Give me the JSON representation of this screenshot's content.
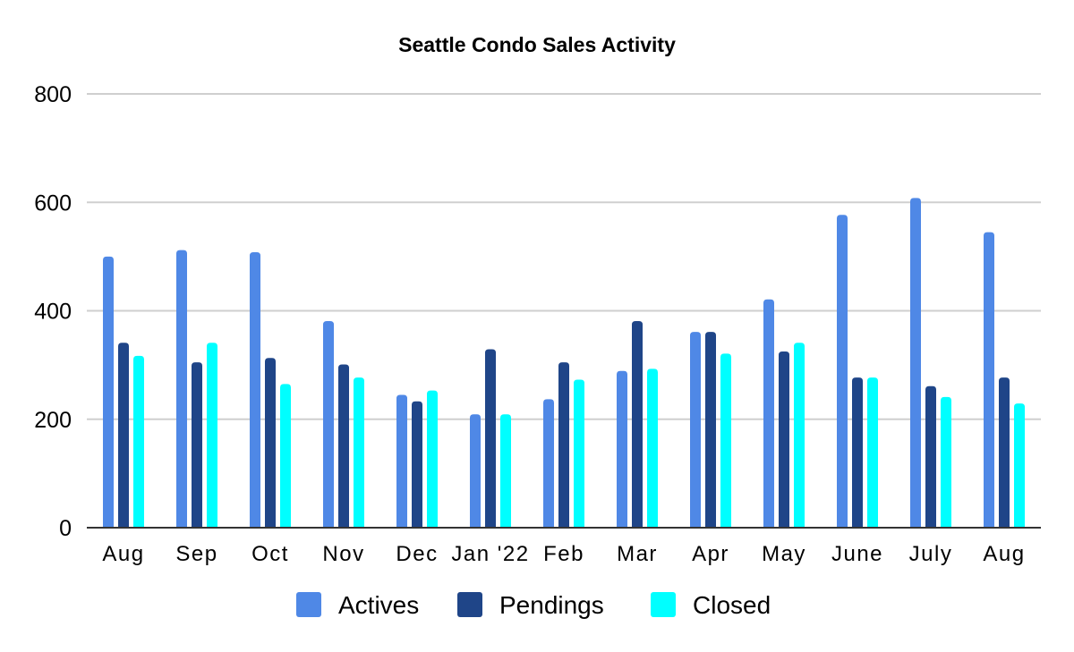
{
  "chart_data": {
    "type": "bar",
    "title": "Seattle Condo Sales Activity",
    "xlabel": "",
    "ylabel": "",
    "ylim": [
      0,
      800
    ],
    "yticks": [
      0,
      200,
      400,
      600,
      800
    ],
    "grid": true,
    "legend_position": "bottom",
    "categories": [
      "Aug",
      "Sep",
      "Oct",
      "Nov",
      "Dec",
      "Jan '22",
      "Feb",
      "Mar",
      "Apr",
      "May",
      "June",
      "July",
      "Aug"
    ],
    "series": [
      {
        "name": "Actives",
        "color": "#4f88e6",
        "values": [
          500,
          512,
          508,
          381,
          245,
          209,
          237,
          289,
          361,
          421,
          577,
          608,
          545
        ]
      },
      {
        "name": "Pendings",
        "color": "#1f4588",
        "values": [
          341,
          305,
          313,
          301,
          233,
          329,
          305,
          381,
          361,
          325,
          277,
          261,
          277
        ]
      },
      {
        "name": "Closed",
        "color": "#00ffff",
        "values": [
          317,
          341,
          265,
          277,
          253,
          209,
          273,
          293,
          321,
          341,
          277,
          241,
          229
        ]
      }
    ]
  }
}
